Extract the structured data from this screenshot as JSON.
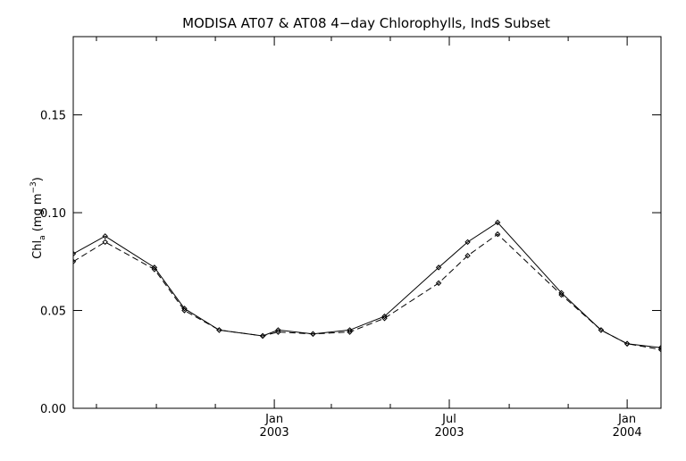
{
  "chart_data": {
    "type": "line",
    "title": "MODISA AT07 & AT08 4−day Chlorophylls, IndS Subset",
    "ylabel": {
      "main": "Chl",
      "sub": "a",
      "unit_open": " (mg m",
      "unit_sup": "−3",
      "unit_close": ")"
    },
    "xlabel": "",
    "xlim": [
      "2002-06-07",
      "2004-02-05"
    ],
    "ylim": [
      0,
      0.19
    ],
    "yticks": [
      {
        "value": 0.0,
        "label": "0.00"
      },
      {
        "value": 0.05,
        "label": "0.05"
      },
      {
        "value": 0.1,
        "label": "0.10"
      },
      {
        "value": 0.15,
        "label": "0.15"
      }
    ],
    "xticks_major": [
      {
        "date": "2003-01-01",
        "line1": "Jan",
        "line2": "2003"
      },
      {
        "date": "2003-07-01",
        "line1": "Jul",
        "line2": "2003"
      },
      {
        "date": "2004-01-01",
        "line1": "Jan",
        "line2": "2004"
      }
    ],
    "xticks_minor": [
      "2002-07-01",
      "2002-09-01",
      "2002-11-01",
      "2003-03-01",
      "2003-05-01",
      "2003-09-01",
      "2003-11-01"
    ],
    "series": [
      {
        "style": "solid",
        "points": [
          {
            "x": "2002-06-07",
            "y": 0.079
          },
          {
            "x": "2002-07-10",
            "y": 0.088
          },
          {
            "x": "2002-08-30",
            "y": 0.072
          },
          {
            "x": "2002-09-30",
            "y": 0.051
          },
          {
            "x": "2002-11-05",
            "y": 0.04
          },
          {
            "x": "2002-12-20",
            "y": 0.037
          },
          {
            "x": "2003-01-05",
            "y": 0.04
          },
          {
            "x": "2003-02-10",
            "y": 0.038
          },
          {
            "x": "2003-03-20",
            "y": 0.04
          },
          {
            "x": "2003-04-25",
            "y": 0.047
          },
          {
            "x": "2003-06-20",
            "y": 0.072
          },
          {
            "x": "2003-07-20",
            "y": 0.085
          },
          {
            "x": "2003-08-20",
            "y": 0.095
          },
          {
            "x": "2003-10-25",
            "y": 0.059
          },
          {
            "x": "2003-12-05",
            "y": 0.04
          },
          {
            "x": "2004-01-01",
            "y": 0.033
          },
          {
            "x": "2004-02-05",
            "y": 0.031
          }
        ]
      },
      {
        "style": "dashed",
        "points": [
          {
            "x": "2002-06-07",
            "y": 0.075
          },
          {
            "x": "2002-07-10",
            "y": 0.085
          },
          {
            "x": "2002-08-30",
            "y": 0.071
          },
          {
            "x": "2002-09-30",
            "y": 0.05
          },
          {
            "x": "2002-11-05",
            "y": 0.04
          },
          {
            "x": "2002-12-20",
            "y": 0.037
          },
          {
            "x": "2003-01-05",
            "y": 0.039
          },
          {
            "x": "2003-02-10",
            "y": 0.038
          },
          {
            "x": "2003-03-20",
            "y": 0.039
          },
          {
            "x": "2003-04-25",
            "y": 0.046
          },
          {
            "x": "2003-06-20",
            "y": 0.064
          },
          {
            "x": "2003-07-20",
            "y": 0.078
          },
          {
            "x": "2003-08-20",
            "y": 0.089
          },
          {
            "x": "2003-10-25",
            "y": 0.058
          },
          {
            "x": "2003-12-05",
            "y": 0.04
          },
          {
            "x": "2004-01-01",
            "y": 0.033
          },
          {
            "x": "2004-02-05",
            "y": 0.03
          }
        ]
      }
    ],
    "grid": false,
    "line_color": "#000000",
    "background": "#ffffff"
  }
}
